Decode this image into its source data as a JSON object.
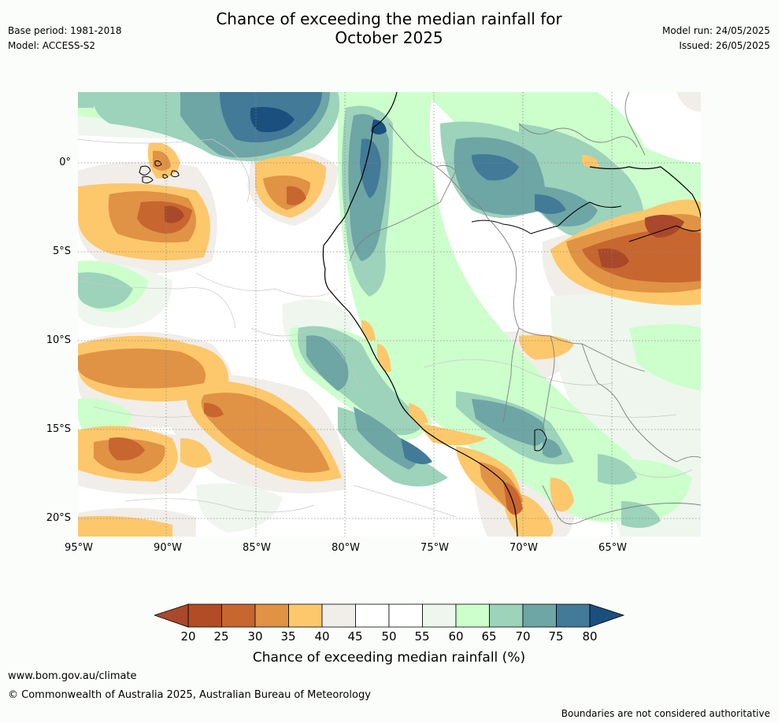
{
  "title_line1": "Chance of exceeding the median rainfall for",
  "title_line2": "October 2025",
  "base_period": "Base period: 1981-2018",
  "model": "Model: ACCESS-S2",
  "model_run": "Model run: 24/05/2025",
  "issued": "Issued: 26/05/2025",
  "lat_labels": [
    "0°",
    "5°S",
    "10°S",
    "15°S",
    "20°S"
  ],
  "lon_labels": [
    "95°W",
    "90°W",
    "85°W",
    "80°W",
    "75°W",
    "70°W",
    "65°W"
  ],
  "legend": {
    "title": "Chance of exceeding median rainfall (%)",
    "ticks": [
      "20",
      "25",
      "30",
      "35",
      "40",
      "45",
      "50",
      "55",
      "60",
      "65",
      "70",
      "75",
      "80"
    ],
    "colors": [
      "#a9482a",
      "#b24c27",
      "#c8662f",
      "#e09245",
      "#fdc86b",
      "#f1ede9",
      "#ffffff",
      "#ffffff",
      "#eef6ee",
      "#ccffcc",
      "#9dd2bb",
      "#6ea5a5",
      "#427a98",
      "#1a4f7e"
    ]
  },
  "website": "www.bom.gov.au/climate",
  "copyright": "© Commonwealth of Australia 2025, Australian Bureau of Meteorology",
  "disclaimer": "Boundaries are not considered authoritative"
}
